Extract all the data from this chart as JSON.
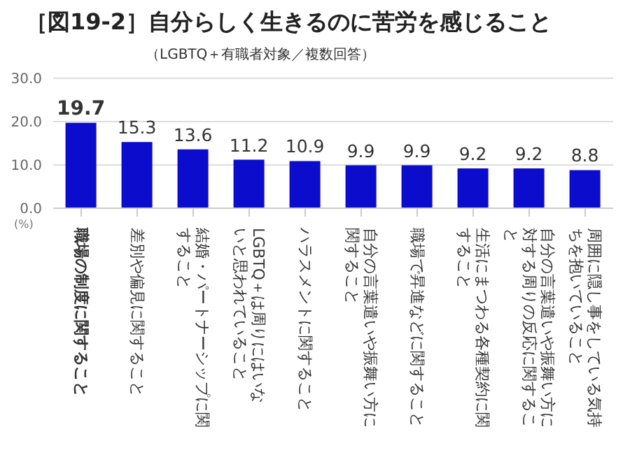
{
  "chart_data": {
    "type": "bar",
    "title": "［図19-2］自分らしく生きるのに苦労を感じること",
    "subtitle": "（LGBTQ＋有職者対象／複数回答）",
    "categories": [
      "職場の制度に関すること",
      "差別や偏見に関すること",
      "結婚・パートナーシップに関すること",
      "LGBTQ＋は周りにはいないと思われていること",
      "ハラスメントに関すること",
      "自分の言葉遣いや振舞い方に関すること",
      "職場で昇進などに関すること",
      "生活にまつわる各種契約に関すること",
      "自分の言葉遣いや振舞い方に対する周りの反応に関すること",
      "周囲に隠し事をしている気持ちを抱いていること"
    ],
    "values": [
      19.7,
      15.3,
      13.6,
      11.2,
      10.9,
      9.9,
      9.9,
      9.2,
      9.2,
      8.8
    ],
    "color": "#0c0ccc",
    "ylim": [
      0,
      30
    ],
    "yticks": [
      {
        "value": 0,
        "label": "0.0"
      },
      {
        "value": 10,
        "label": "10.0"
      },
      {
        "value": 20,
        "label": "20.0"
      },
      {
        "value": 30,
        "label": "30.0"
      }
    ],
    "grid": "y",
    "data_labels": true,
    "annotations": [
      "(%)"
    ]
  }
}
